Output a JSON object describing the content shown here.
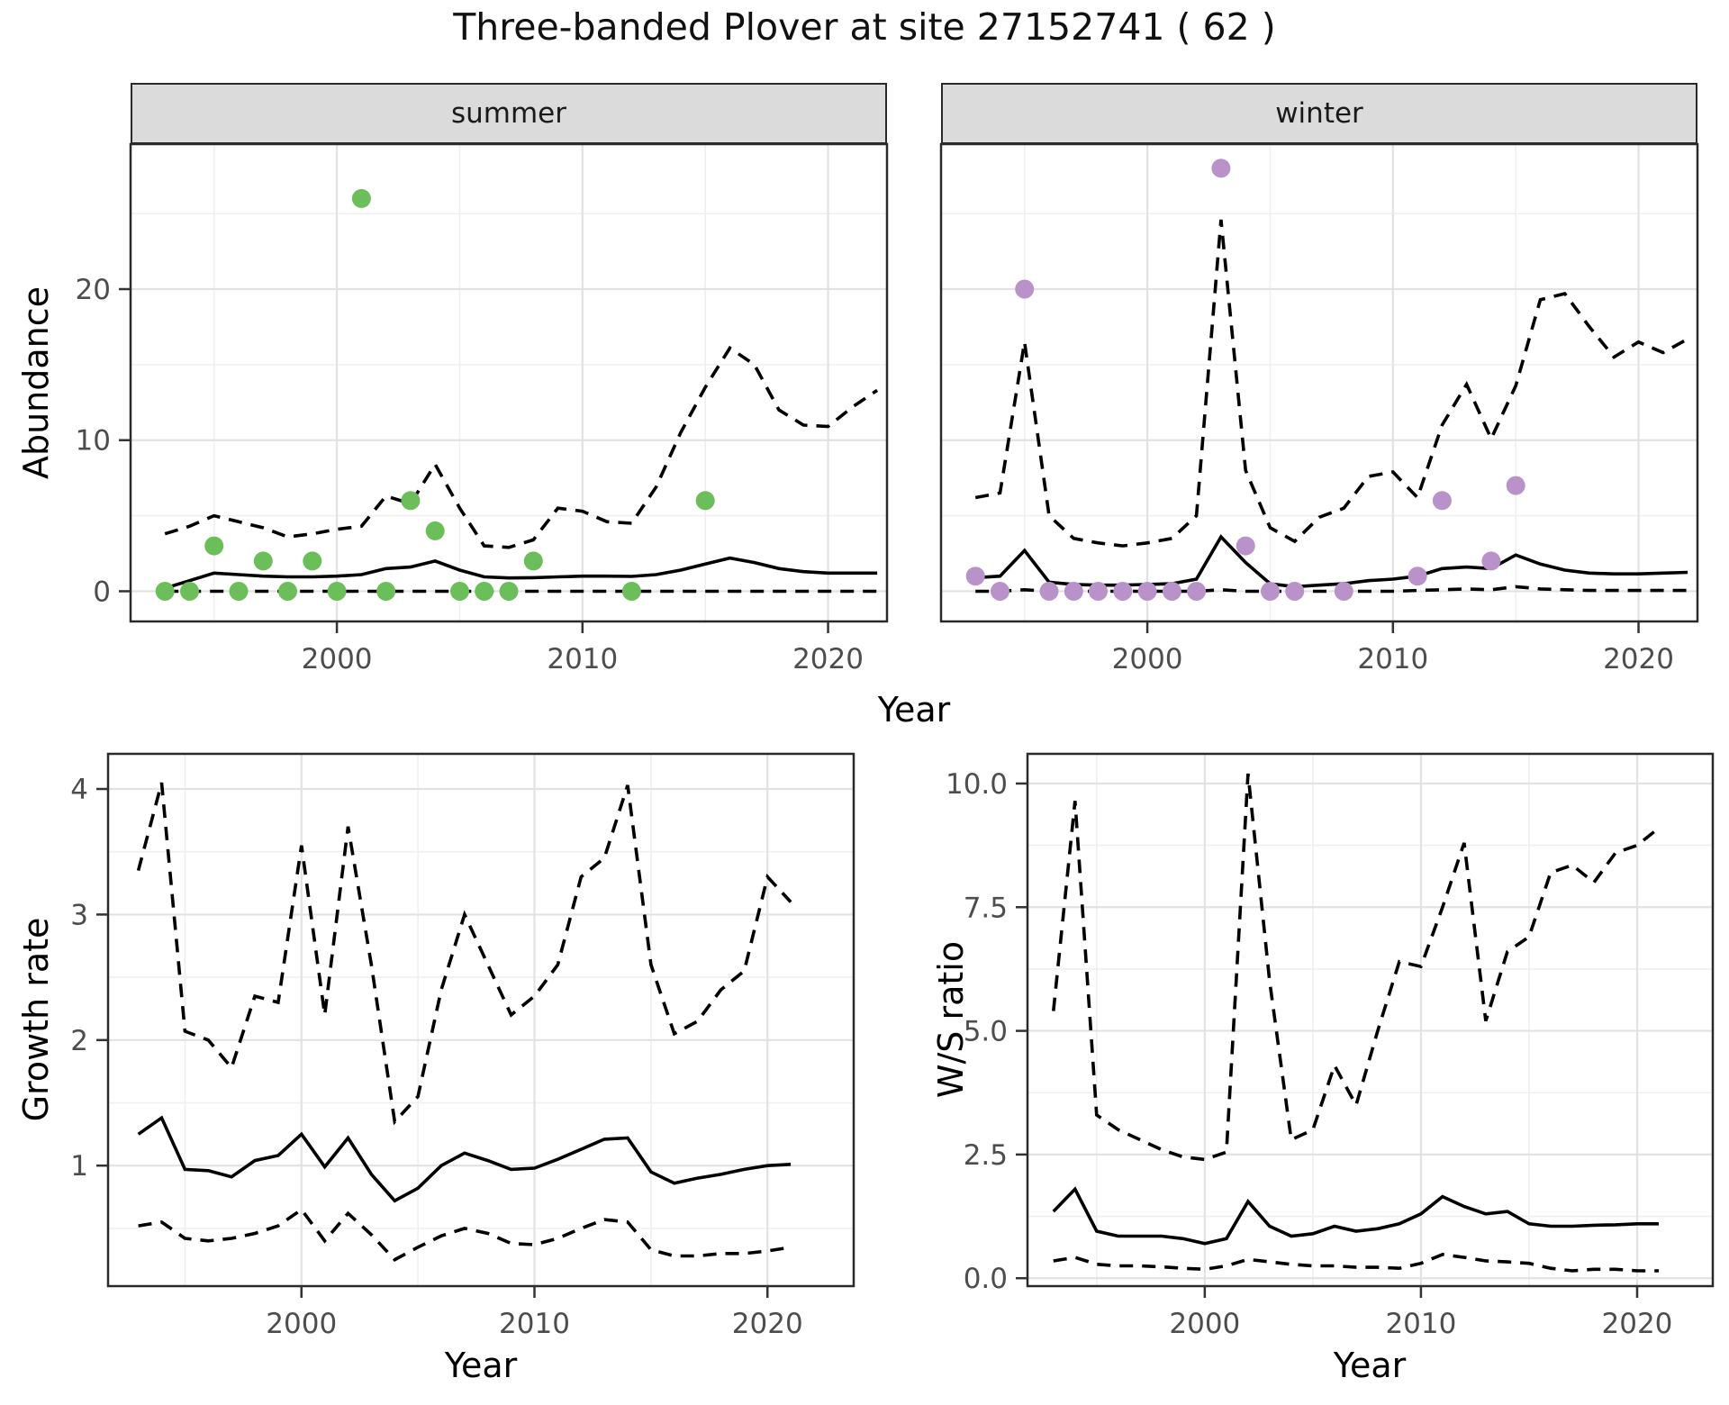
{
  "title": "Three-banded Plover at site 27152741 ( 62 )",
  "labels": {
    "facet_summer": "summer",
    "facet_winter": "winter",
    "y_abundance": "Abundance",
    "y_growth": "Growth rate",
    "y_ws": "W/S ratio",
    "x_year": "Year"
  },
  "colors": {
    "summer_points": "#6CBE5A",
    "winter_points": "#B992CA",
    "line": "#000000",
    "grid_major": "#E2E2E2",
    "grid_minor": "#EFEFEF",
    "panel_border": "#2a2a2a",
    "axis_text": "#4d4d4d",
    "strip_bg": "#DBDBDB"
  },
  "chart_data": [
    {
      "id": "abundance-summer",
      "type": "line",
      "facet_label": "summer",
      "xlabel": "Year",
      "ylabel": "Abundance",
      "xlim": [
        1991.6,
        2022.4
      ],
      "ylim": [
        -2.0,
        29.6
      ],
      "x_ticks": [
        {
          "v": 2000,
          "label": "2000"
        },
        {
          "v": 2010,
          "label": "2010"
        },
        {
          "v": 2020,
          "label": "2020"
        }
      ],
      "y_ticks": [
        {
          "v": 0,
          "label": "0"
        },
        {
          "v": 10,
          "label": "10"
        },
        {
          "v": 20,
          "label": "20"
        }
      ],
      "x_grid_minor": [
        1995,
        2005,
        2015
      ],
      "y_grid_major": [
        0,
        10,
        20
      ],
      "y_grid_minor": [
        5,
        15,
        25
      ],
      "x": [
        1993,
        1994,
        1995,
        1996,
        1997,
        1998,
        1999,
        2000,
        2001,
        2002,
        2003,
        2004,
        2005,
        2006,
        2007,
        2008,
        2009,
        2010,
        2011,
        2012,
        2013,
        2014,
        2015,
        2016,
        2017,
        2018,
        2019,
        2020,
        2021,
        2022
      ],
      "series": [
        {
          "name": "median",
          "line": "solid",
          "values": [
            0.2,
            0.7,
            1.2,
            1.1,
            1.0,
            0.95,
            0.95,
            1.0,
            1.1,
            1.5,
            1.6,
            2.0,
            1.4,
            0.95,
            0.88,
            0.9,
            0.95,
            1.0,
            1.0,
            0.98,
            1.1,
            1.4,
            1.8,
            2.2,
            1.9,
            1.5,
            1.3,
            1.2,
            1.2,
            1.2
          ]
        },
        {
          "name": "upper-95ci",
          "line": "dashed",
          "values": [
            3.8,
            4.3,
            5.0,
            4.6,
            4.2,
            3.6,
            3.8,
            4.1,
            4.3,
            6.3,
            5.8,
            8.4,
            5.5,
            3.0,
            2.9,
            3.4,
            5.5,
            5.3,
            4.6,
            4.5,
            6.9,
            10.5,
            13.5,
            16.1,
            15.0,
            12.0,
            11.0,
            10.9,
            12.2,
            13.3
          ]
        },
        {
          "name": "lower-95ci",
          "line": "dashed",
          "values": [
            0,
            0,
            0,
            0,
            0,
            0,
            0,
            0,
            0,
            0,
            0,
            0,
            0,
            0,
            0,
            0,
            0,
            0,
            0,
            0,
            0,
            0,
            0,
            0,
            0,
            0,
            0,
            0,
            0,
            0
          ]
        }
      ],
      "points": {
        "name": "observed-count",
        "color": "#6CBE5A",
        "data": [
          [
            1993,
            0
          ],
          [
            1994,
            0
          ],
          [
            1995,
            3
          ],
          [
            1996,
            0
          ],
          [
            1997,
            2
          ],
          [
            1998,
            0
          ],
          [
            1999,
            2
          ],
          [
            2000,
            0
          ],
          [
            2001,
            26
          ],
          [
            2002,
            0
          ],
          [
            2003,
            6
          ],
          [
            2004,
            4
          ],
          [
            2005,
            0
          ],
          [
            2006,
            0
          ],
          [
            2007,
            0
          ],
          [
            2008,
            2
          ],
          [
            2012,
            0
          ],
          [
            2015,
            6
          ]
        ]
      }
    },
    {
      "id": "abundance-winter",
      "type": "line",
      "facet_label": "winter",
      "xlabel": "Year",
      "ylabel": "Abundance",
      "xlim": [
        1991.6,
        2022.4
      ],
      "ylim": [
        -2.0,
        29.6
      ],
      "x_ticks": [
        {
          "v": 2000,
          "label": "2000"
        },
        {
          "v": 2010,
          "label": "2010"
        },
        {
          "v": 2020,
          "label": "2020"
        }
      ],
      "y_ticks": [],
      "x_grid_minor": [
        1995,
        2005,
        2015
      ],
      "y_grid_major": [
        0,
        10,
        20
      ],
      "y_grid_minor": [
        5,
        15,
        25
      ],
      "x": [
        1993,
        1994,
        1995,
        1996,
        1997,
        1998,
        1999,
        2000,
        2001,
        2002,
        2003,
        2004,
        2005,
        2006,
        2007,
        2008,
        2009,
        2010,
        2011,
        2012,
        2013,
        2014,
        2015,
        2016,
        2017,
        2018,
        2019,
        2020,
        2021,
        2022
      ],
      "series": [
        {
          "name": "median",
          "line": "solid",
          "values": [
            0.9,
            1.0,
            2.7,
            0.6,
            0.45,
            0.4,
            0.4,
            0.45,
            0.5,
            0.8,
            3.6,
            1.9,
            0.5,
            0.3,
            0.4,
            0.5,
            0.7,
            0.8,
            1.0,
            1.5,
            1.6,
            1.5,
            2.4,
            1.8,
            1.4,
            1.2,
            1.15,
            1.15,
            1.2,
            1.25
          ]
        },
        {
          "name": "upper-95ci",
          "line": "dashed",
          "values": [
            6.2,
            6.5,
            16.5,
            5.0,
            3.5,
            3.2,
            3.0,
            3.2,
            3.5,
            5.0,
            24.6,
            8.0,
            4.2,
            3.3,
            4.9,
            5.5,
            7.6,
            7.9,
            6.2,
            11.0,
            13.7,
            10.1,
            13.6,
            19.3,
            19.7,
            17.5,
            15.5,
            16.5,
            15.8,
            16.7
          ]
        },
        {
          "name": "lower-95ci",
          "line": "dashed",
          "values": [
            0,
            0,
            0.1,
            0,
            0,
            0,
            0,
            0,
            0,
            0,
            0.1,
            0,
            0,
            0,
            0,
            0,
            0,
            0,
            0.05,
            0.1,
            0.15,
            0.1,
            0.3,
            0.15,
            0.1,
            0.05,
            0.05,
            0.05,
            0.05,
            0.05
          ]
        }
      ],
      "points": {
        "name": "observed-count",
        "color": "#B992CA",
        "data": [
          [
            1993,
            1
          ],
          [
            1994,
            0
          ],
          [
            1995,
            20
          ],
          [
            1996,
            0
          ],
          [
            1997,
            0
          ],
          [
            1998,
            0
          ],
          [
            1999,
            0
          ],
          [
            2000,
            0
          ],
          [
            2001,
            0
          ],
          [
            2002,
            0
          ],
          [
            2003,
            28
          ],
          [
            2004,
            3
          ],
          [
            2005,
            0
          ],
          [
            2006,
            0
          ],
          [
            2008,
            0
          ],
          [
            2011,
            1
          ],
          [
            2012,
            6
          ],
          [
            2014,
            2
          ],
          [
            2015,
            7
          ]
        ]
      }
    },
    {
      "id": "growth-rate",
      "type": "line",
      "xlabel": "Year",
      "ylabel": "Growth rate",
      "xlim": [
        1991.7,
        2023.7
      ],
      "ylim": [
        0.04,
        4.28
      ],
      "x_ticks": [
        {
          "v": 2000,
          "label": "2000"
        },
        {
          "v": 2010,
          "label": "2010"
        },
        {
          "v": 2020,
          "label": "2020"
        }
      ],
      "y_ticks": [
        {
          "v": 1,
          "label": "1"
        },
        {
          "v": 2,
          "label": "2"
        },
        {
          "v": 3,
          "label": "3"
        },
        {
          "v": 4,
          "label": "4"
        }
      ],
      "x_grid_minor": [
        1995,
        2005,
        2015
      ],
      "y_grid_major": [
        1,
        2,
        3,
        4
      ],
      "y_grid_minor": [
        0.5,
        1.5,
        2.5,
        3.5
      ],
      "x": [
        1993,
        1994,
        1995,
        1996,
        1997,
        1998,
        1999,
        2000,
        2001,
        2002,
        2003,
        2004,
        2005,
        2006,
        2007,
        2008,
        2009,
        2010,
        2011,
        2012,
        2013,
        2014,
        2015,
        2016,
        2017,
        2018,
        2019,
        2020,
        2021
      ],
      "series": [
        {
          "name": "median",
          "line": "solid",
          "values": [
            1.25,
            1.38,
            0.97,
            0.96,
            0.91,
            1.04,
            1.08,
            1.25,
            0.99,
            1.22,
            0.93,
            0.72,
            0.82,
            1.0,
            1.1,
            1.04,
            0.97,
            0.98,
            1.05,
            1.13,
            1.21,
            1.22,
            0.95,
            0.86,
            0.9,
            0.93,
            0.97,
            1.0,
            1.01
          ]
        },
        {
          "name": "upper-95ci",
          "line": "dashed",
          "values": [
            3.35,
            4.05,
            2.07,
            2.0,
            1.78,
            2.35,
            2.3,
            3.55,
            2.2,
            3.7,
            2.6,
            1.35,
            1.55,
            2.4,
            3.0,
            2.6,
            2.2,
            2.35,
            2.6,
            3.3,
            3.45,
            4.03,
            2.6,
            2.05,
            2.15,
            2.4,
            2.55,
            3.3,
            3.1
          ]
        },
        {
          "name": "lower-95ci",
          "line": "dashed",
          "values": [
            0.52,
            0.55,
            0.42,
            0.4,
            0.42,
            0.46,
            0.52,
            0.65,
            0.4,
            0.62,
            0.45,
            0.25,
            0.35,
            0.44,
            0.5,
            0.46,
            0.38,
            0.37,
            0.42,
            0.5,
            0.57,
            0.55,
            0.33,
            0.28,
            0.28,
            0.3,
            0.3,
            0.32,
            0.35
          ]
        }
      ]
    },
    {
      "id": "ws-ratio",
      "type": "line",
      "xlabel": "Year",
      "ylabel": "W/S ratio",
      "xlim": [
        1991.8,
        2023.5
      ],
      "ylim": [
        -0.16,
        10.6
      ],
      "x_ticks": [
        {
          "v": 2000,
          "label": "2000"
        },
        {
          "v": 2010,
          "label": "2010"
        },
        {
          "v": 2020,
          "label": "2020"
        }
      ],
      "y_ticks": [
        {
          "v": 0,
          "label": "0.0"
        },
        {
          "v": 2.5,
          "label": "2.5"
        },
        {
          "v": 5,
          "label": "5.0"
        },
        {
          "v": 7.5,
          "label": "7.5"
        },
        {
          "v": 10,
          "label": "10.0"
        }
      ],
      "x_grid_minor": [
        1995,
        2005,
        2015
      ],
      "y_grid_major": [
        0,
        2.5,
        5,
        7.5,
        10
      ],
      "y_grid_minor": [
        1.25,
        3.75,
        6.25,
        8.75
      ],
      "x": [
        1993,
        1994,
        1995,
        1996,
        1997,
        1998,
        1999,
        2000,
        2001,
        2002,
        2003,
        2004,
        2005,
        2006,
        2007,
        2008,
        2009,
        2010,
        2011,
        2012,
        2013,
        2014,
        2015,
        2016,
        2017,
        2018,
        2019,
        2020,
        2021
      ],
      "series": [
        {
          "name": "median",
          "line": "solid",
          "values": [
            1.35,
            1.8,
            0.95,
            0.85,
            0.85,
            0.85,
            0.8,
            0.7,
            0.8,
            1.55,
            1.05,
            0.85,
            0.9,
            1.05,
            0.95,
            1.0,
            1.1,
            1.3,
            1.65,
            1.45,
            1.3,
            1.35,
            1.1,
            1.05,
            1.05,
            1.07,
            1.08,
            1.1,
            1.1
          ]
        },
        {
          "name": "upper-95ci",
          "line": "dashed",
          "values": [
            5.4,
            9.65,
            3.3,
            3.0,
            2.8,
            2.6,
            2.45,
            2.4,
            2.55,
            10.2,
            6.0,
            2.8,
            3.0,
            4.3,
            3.5,
            5.0,
            6.4,
            6.3,
            7.5,
            8.8,
            5.2,
            6.6,
            6.9,
            8.2,
            8.35,
            8.0,
            8.6,
            8.75,
            9.1
          ]
        },
        {
          "name": "lower-95ci",
          "line": "dashed",
          "values": [
            0.35,
            0.42,
            0.28,
            0.25,
            0.25,
            0.23,
            0.2,
            0.18,
            0.25,
            0.38,
            0.33,
            0.28,
            0.25,
            0.25,
            0.22,
            0.22,
            0.2,
            0.3,
            0.48,
            0.42,
            0.35,
            0.33,
            0.3,
            0.2,
            0.15,
            0.18,
            0.18,
            0.15,
            0.15
          ]
        }
      ]
    }
  ]
}
